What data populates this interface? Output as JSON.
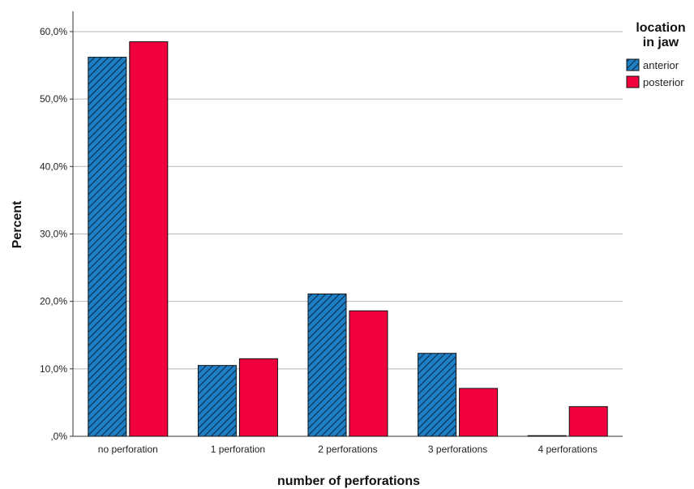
{
  "chart_data": {
    "type": "bar",
    "xlabel": "number of perforations",
    "ylabel": "Percent",
    "ylim": [
      0,
      63
    ],
    "yticks": [
      0,
      10,
      20,
      30,
      40,
      50,
      60
    ],
    "ytick_labels": [
      ",0%",
      "10,0%",
      "20,0%",
      "30,0%",
      "40,0%",
      "50,0%",
      "60,0%"
    ],
    "grid": true,
    "categories": [
      "no perforation",
      "1 perforation",
      "2 perforations",
      "3 perforations",
      "4 perforations"
    ],
    "legend": {
      "title_line1": "location",
      "title_line2": "in jaw",
      "placement": "top-right"
    },
    "series": [
      {
        "name": "anterior",
        "color": "#1f7fc4",
        "pattern": "diagonal-hatch",
        "values": [
          56.2,
          10.5,
          21.1,
          12.3,
          0.0
        ]
      },
      {
        "name": "posterior",
        "color": "#f0003c",
        "pattern": "solid",
        "values": [
          58.5,
          11.5,
          18.6,
          7.1,
          4.4
        ]
      }
    ]
  }
}
